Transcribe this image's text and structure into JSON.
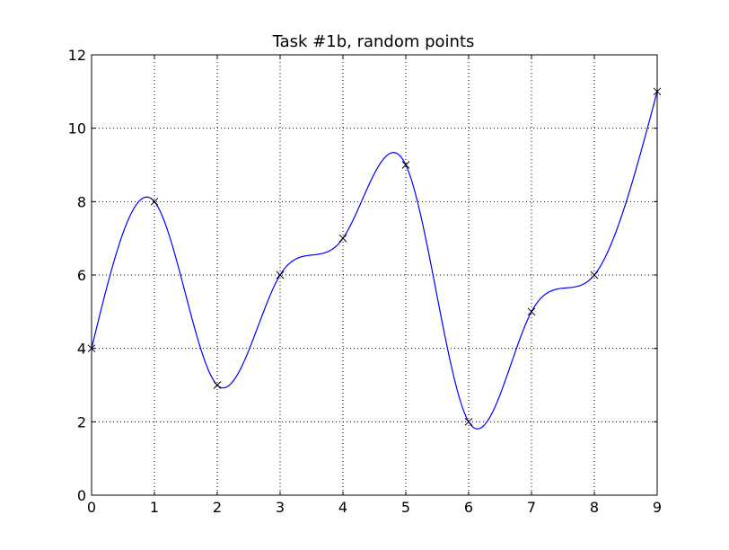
{
  "chart_data": {
    "type": "line",
    "title": "Task #1b, random points",
    "xlabel": "",
    "ylabel": "",
    "xlim": [
      0,
      9
    ],
    "ylim": [
      0,
      12
    ],
    "xticks": [
      0,
      1,
      2,
      3,
      4,
      5,
      6,
      7,
      8,
      9
    ],
    "yticks": [
      0,
      2,
      4,
      6,
      8,
      10,
      12
    ],
    "grid": true,
    "series": [
      {
        "style": "markers",
        "marker": "x",
        "color": "#0000ff",
        "x": [
          0,
          1,
          2,
          3,
          4,
          5,
          6,
          7,
          8,
          9
        ],
        "y": [
          4,
          8,
          3,
          6,
          7,
          9,
          2,
          5,
          6,
          11
        ]
      },
      {
        "style": "smooth-curve",
        "color": "#0000ff",
        "x": [
          0,
          1,
          2,
          3,
          4,
          5,
          6,
          7,
          8,
          9
        ],
        "y": [
          4,
          8,
          3,
          6,
          7,
          9,
          2,
          5,
          6,
          11
        ]
      }
    ]
  }
}
